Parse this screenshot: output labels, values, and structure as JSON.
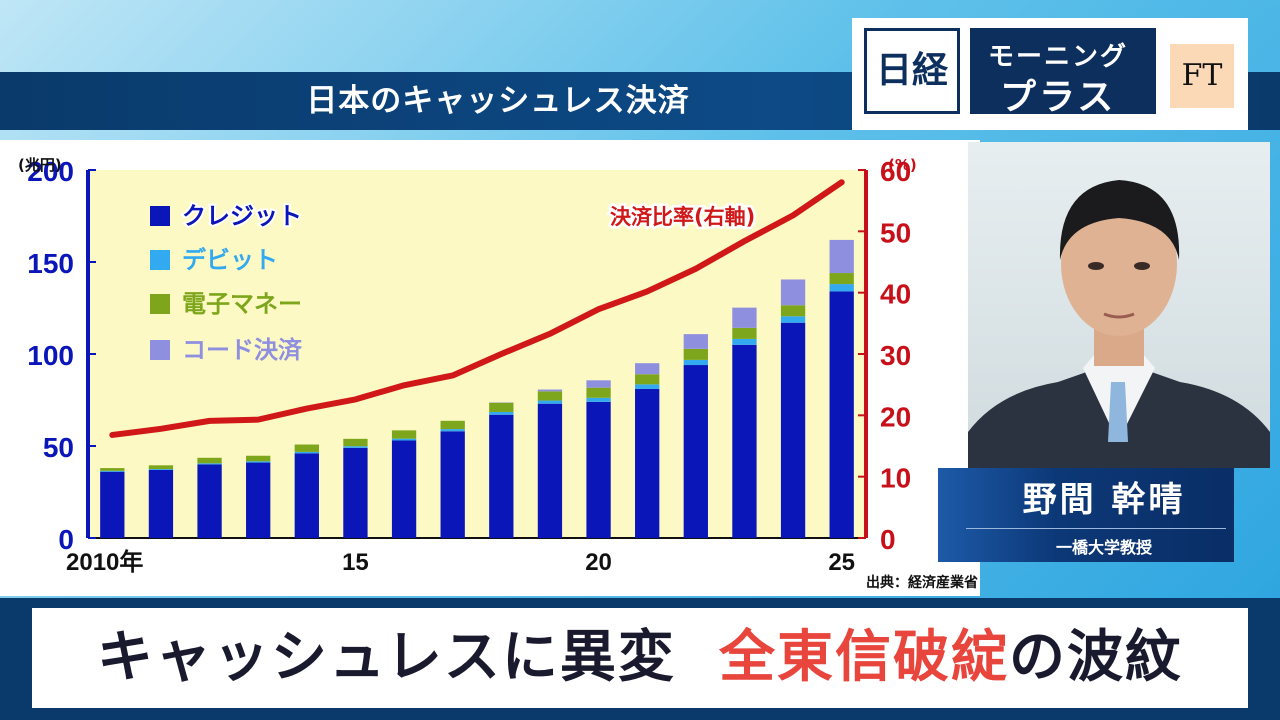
{
  "program": {
    "logo_left": "日経",
    "logo_line1": "モーニング",
    "logo_line2": "プラス",
    "logo_right": "FT"
  },
  "chart_title": "日本のキャッシュレス決済",
  "source": "出典：経済産業省",
  "speaker": {
    "name": "野間 幹晴",
    "title": "一橋大学教授"
  },
  "headline": {
    "part1": "キャッシュレスに異変",
    "part2": "全東信破綻",
    "part3": "の波紋"
  },
  "colors": {
    "credit": "#0b16b8",
    "debit": "#33aaf0",
    "emoney": "#7ea61c",
    "code": "#8f8fe0",
    "ratio_line": "#d01818",
    "plot_bg": "#fdf9c4",
    "left_axis": "#0b16b8",
    "right_axis": "#c8101a"
  },
  "chart_data": {
    "type": "bar",
    "stacked": true,
    "x": [
      2010,
      2011,
      2012,
      2013,
      2014,
      2015,
      2016,
      2017,
      2018,
      2019,
      2020,
      2021,
      2022,
      2023,
      2024,
      2025
    ],
    "x_tick_labels": [
      "2010年",
      "15",
      "20",
      "25"
    ],
    "x_tick_positions": [
      2010,
      2015,
      2020,
      2025
    ],
    "left_axis": {
      "unit_label": "(兆円)",
      "ylim": [
        0,
        200
      ],
      "ticks": [
        "0",
        "50",
        "100",
        "150",
        "200"
      ]
    },
    "right_axis": {
      "unit_label": "(%)",
      "ylim": [
        0,
        60
      ],
      "ticks": [
        "0",
        "10",
        "20",
        "30",
        "40",
        "50",
        "60"
      ]
    },
    "series": [
      {
        "name": "クレジット",
        "values": [
          36,
          37,
          40,
          41,
          46,
          49,
          53,
          58,
          67,
          73,
          74,
          81,
          94,
          105,
          117,
          134
        ]
      },
      {
        "name": "デビット",
        "values": [
          0.5,
          0.5,
          0.6,
          0.7,
          0.8,
          0.9,
          1.0,
          1.2,
          1.5,
          1.7,
          2.2,
          2.5,
          2.8,
          3.2,
          3.5,
          4
        ]
      },
      {
        "name": "電子マネー",
        "values": [
          1.5,
          2,
          3,
          3,
          4,
          4,
          4.5,
          4.5,
          5,
          5,
          5.5,
          5.5,
          6,
          6,
          6,
          6
        ]
      },
      {
        "name": "コード決済",
        "values": [
          0,
          0,
          0,
          0,
          0,
          0,
          0,
          0,
          0.2,
          1,
          4,
          6,
          8,
          11,
          14,
          18
        ]
      }
    ],
    "line_series": {
      "name": "決済比率(右軸)",
      "axis": "right",
      "values": [
        16.8,
        17.8,
        19.1,
        19.3,
        21.1,
        22.6,
        24.9,
        26.5,
        30.0,
        33.3,
        37.3,
        40.2,
        43.9,
        48.4,
        52.6,
        58.0
      ]
    },
    "legend_position": "top-left",
    "grid": false
  }
}
